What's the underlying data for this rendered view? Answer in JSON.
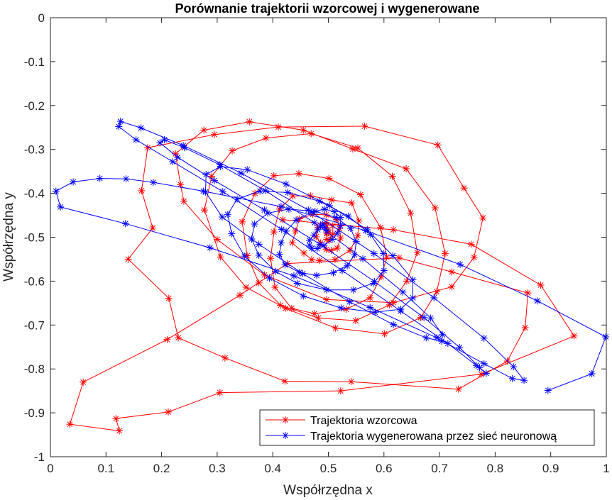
{
  "chart_data": {
    "type": "line",
    "title": "Porównanie trajektorii wzorcowej i wygenerowane",
    "xlabel": "Współrzędna x",
    "ylabel": "Współrzędna y",
    "xlim": [
      0,
      1
    ],
    "ylim": [
      -1,
      0
    ],
    "xticks": [
      "0",
      "0.1",
      "0.2",
      "0.3",
      "0.4",
      "0.5",
      "0.6",
      "0.7",
      "0.8",
      "0.9",
      "1"
    ],
    "yticks": [
      "0",
      "-0.1",
      "-0.2",
      "-0.3",
      "-0.4",
      "-0.5",
      "-0.6",
      "-0.7",
      "-0.8",
      "-0.9",
      "-1"
    ],
    "grid": false,
    "legend_position": "bottom-right",
    "series": [
      {
        "name": "Trajektoria wzorcowa",
        "color": "#ff0000",
        "marker": "asterisk",
        "x": [
          0.5,
          0.499,
          0.498,
          0.497,
          0.497,
          0.497,
          0.501,
          0.508,
          0.508,
          0.496,
          0.481,
          0.478,
          0.486,
          0.496,
          0.505,
          0.516,
          0.522,
          0.52,
          0.515,
          0.496,
          0.472,
          0.448,
          0.441,
          0.435,
          0.456,
          0.47,
          0.484,
          0.512,
          0.539,
          0.553,
          0.555,
          0.542,
          0.506,
          0.468,
          0.436,
          0.412,
          0.402,
          0.396,
          0.404,
          0.434,
          0.475,
          0.532,
          0.575,
          0.595,
          0.605,
          0.594,
          0.558,
          0.501,
          0.447,
          0.402,
          0.368,
          0.345,
          0.354,
          0.375,
          0.414,
          0.482,
          0.549,
          0.61,
          0.641,
          0.66,
          0.648,
          0.615,
          0.553,
          0.469,
          0.388,
          0.327,
          0.29,
          0.277,
          0.306,
          0.352,
          0.423,
          0.513,
          0.601,
          0.666,
          0.695,
          0.71,
          0.692,
          0.64,
          0.544,
          0.455,
          0.358,
          0.276,
          0.225,
          0.234,
          0.24,
          0.3,
          0.385,
          0.497,
          0.617,
          0.722,
          0.762,
          0.778,
          0.744,
          0.697,
          0.565,
          0.41,
          0.295,
          0.175,
          0.164,
          0.184,
          0.14,
          0.213,
          0.23,
          0.314,
          0.422,
          0.541,
          0.734,
          0.822,
          0.854,
          0.859,
          0.722,
          0.627,
          0.426,
          0.341,
          0.21,
          0.059,
          0.035,
          0.124,
          0.118,
          0.212,
          0.305,
          0.522,
          0.775,
          0.942,
          0.882,
          0.757,
          0.617,
          0.418
        ],
        "y": [
          -0.49,
          -0.483,
          -0.491,
          -0.474,
          -0.49,
          -0.505,
          -0.507,
          -0.493,
          -0.474,
          -0.466,
          -0.478,
          -0.499,
          -0.513,
          -0.528,
          -0.53,
          -0.525,
          -0.502,
          -0.48,
          -0.46,
          -0.449,
          -0.448,
          -0.458,
          -0.486,
          -0.513,
          -0.536,
          -0.551,
          -0.553,
          -0.551,
          -0.53,
          -0.496,
          -0.463,
          -0.422,
          -0.415,
          -0.406,
          -0.406,
          -0.436,
          -0.488,
          -0.548,
          -0.614,
          -0.662,
          -0.674,
          -0.664,
          -0.638,
          -0.59,
          -0.545,
          -0.478,
          -0.403,
          -0.366,
          -0.355,
          -0.36,
          -0.4,
          -0.465,
          -0.542,
          -0.604,
          -0.655,
          -0.684,
          -0.69,
          -0.654,
          -0.6,
          -0.535,
          -0.445,
          -0.361,
          -0.297,
          -0.264,
          -0.274,
          -0.303,
          -0.361,
          -0.438,
          -0.545,
          -0.614,
          -0.662,
          -0.707,
          -0.72,
          -0.683,
          -0.624,
          -0.537,
          -0.433,
          -0.344,
          -0.299,
          -0.256,
          -0.237,
          -0.256,
          -0.31,
          -0.38,
          -0.418,
          -0.505,
          -0.586,
          -0.642,
          -0.649,
          -0.613,
          -0.546,
          -0.456,
          -0.388,
          -0.29,
          -0.247,
          -0.249,
          -0.266,
          -0.296,
          -0.394,
          -0.479,
          -0.55,
          -0.639,
          -0.729,
          -0.775,
          -0.828,
          -0.829,
          -0.846,
          -0.782,
          -0.706,
          -0.627,
          -0.579,
          -0.547,
          -0.56,
          -0.632,
          -0.733,
          -0.83,
          -0.926,
          -0.941,
          -0.913,
          -0.898,
          -0.854,
          -0.85,
          -0.812,
          -0.725,
          -0.609,
          -0.516,
          -0.483,
          -0.46
        ]
      },
      {
        "name": "Trajektoria wygenerowana przez sieć neuronową",
        "color": "#0000ff",
        "marker": "asterisk",
        "x": [
          0.497,
          0.493,
          0.49,
          0.486,
          0.481,
          0.474,
          0.466,
          0.466,
          0.47,
          0.48,
          0.492,
          0.507,
          0.516,
          0.522,
          0.522,
          0.511,
          0.493,
          0.47,
          0.442,
          0.424,
          0.415,
          0.412,
          0.422,
          0.448,
          0.479,
          0.509,
          0.534,
          0.547,
          0.55,
          0.54,
          0.514,
          0.476,
          0.429,
          0.391,
          0.367,
          0.362,
          0.375,
          0.405,
          0.444,
          0.497,
          0.545,
          0.581,
          0.6,
          0.599,
          0.576,
          0.536,
          0.484,
          0.427,
          0.377,
          0.336,
          0.319,
          0.326,
          0.349,
          0.394,
          0.455,
          0.523,
          0.584,
          0.63,
          0.652,
          0.652,
          0.616,
          0.57,
          0.502,
          0.424,
          0.354,
          0.306,
          0.28,
          0.279,
          0.309,
          0.375,
          0.454,
          0.538,
          0.617,
          0.676,
          0.704,
          0.705,
          0.684,
          0.634,
          0.562,
          0.475,
          0.387,
          0.305,
          0.241,
          0.205,
          0.197,
          0.229,
          0.295,
          0.385,
          0.485,
          0.583,
          0.672,
          0.736,
          0.772,
          0.784,
          0.766,
          0.715,
          0.63,
          0.525,
          0.416,
          0.31,
          0.22,
          0.154,
          0.123,
          0.126,
          0.163,
          0.239,
          0.343,
          0.464,
          0.582,
          0.69,
          0.78,
          0.833,
          0.852,
          0.831,
          0.78,
          0.695,
          0.575,
          0.438,
          0.287,
          0.135,
          0.018,
          0.01,
          0.041,
          0.089,
          0.136,
          0.185,
          0.275,
          0.415,
          0.567,
          0.737,
          0.876,
          0.999,
          0.974,
          0.895
        ],
        "y": [
          -0.486,
          -0.477,
          -0.47,
          -0.474,
          -0.483,
          -0.495,
          -0.507,
          -0.518,
          -0.525,
          -0.526,
          -0.519,
          -0.505,
          -0.491,
          -0.474,
          -0.455,
          -0.442,
          -0.436,
          -0.443,
          -0.461,
          -0.486,
          -0.513,
          -0.539,
          -0.563,
          -0.58,
          -0.587,
          -0.581,
          -0.565,
          -0.54,
          -0.51,
          -0.48,
          -0.455,
          -0.441,
          -0.436,
          -0.445,
          -0.47,
          -0.504,
          -0.541,
          -0.578,
          -0.605,
          -0.62,
          -0.62,
          -0.605,
          -0.576,
          -0.537,
          -0.494,
          -0.452,
          -0.418,
          -0.398,
          -0.395,
          -0.413,
          -0.448,
          -0.492,
          -0.543,
          -0.593,
          -0.634,
          -0.661,
          -0.671,
          -0.664,
          -0.638,
          -0.597,
          -0.542,
          -0.483,
          -0.428,
          -0.379,
          -0.346,
          -0.339,
          -0.357,
          -0.397,
          -0.454,
          -0.516,
          -0.583,
          -0.647,
          -0.699,
          -0.729,
          -0.737,
          -0.722,
          -0.684,
          -0.625,
          -0.549,
          -0.467,
          -0.394,
          -0.335,
          -0.296,
          -0.278,
          -0.285,
          -0.318,
          -0.371,
          -0.438,
          -0.516,
          -0.601,
          -0.683,
          -0.751,
          -0.797,
          -0.81,
          -0.792,
          -0.742,
          -0.668,
          -0.576,
          -0.482,
          -0.396,
          -0.328,
          -0.278,
          -0.248,
          -0.236,
          -0.251,
          -0.291,
          -0.354,
          -0.438,
          -0.537,
          -0.638,
          -0.73,
          -0.795,
          -0.826,
          -0.822,
          -0.788,
          -0.729,
          -0.66,
          -0.588,
          -0.524,
          -0.469,
          -0.431,
          -0.395,
          -0.374,
          -0.366,
          -0.367,
          -0.375,
          -0.395,
          -0.43,
          -0.485,
          -0.562,
          -0.645,
          -0.727,
          -0.811,
          -0.849
        ]
      }
    ]
  }
}
